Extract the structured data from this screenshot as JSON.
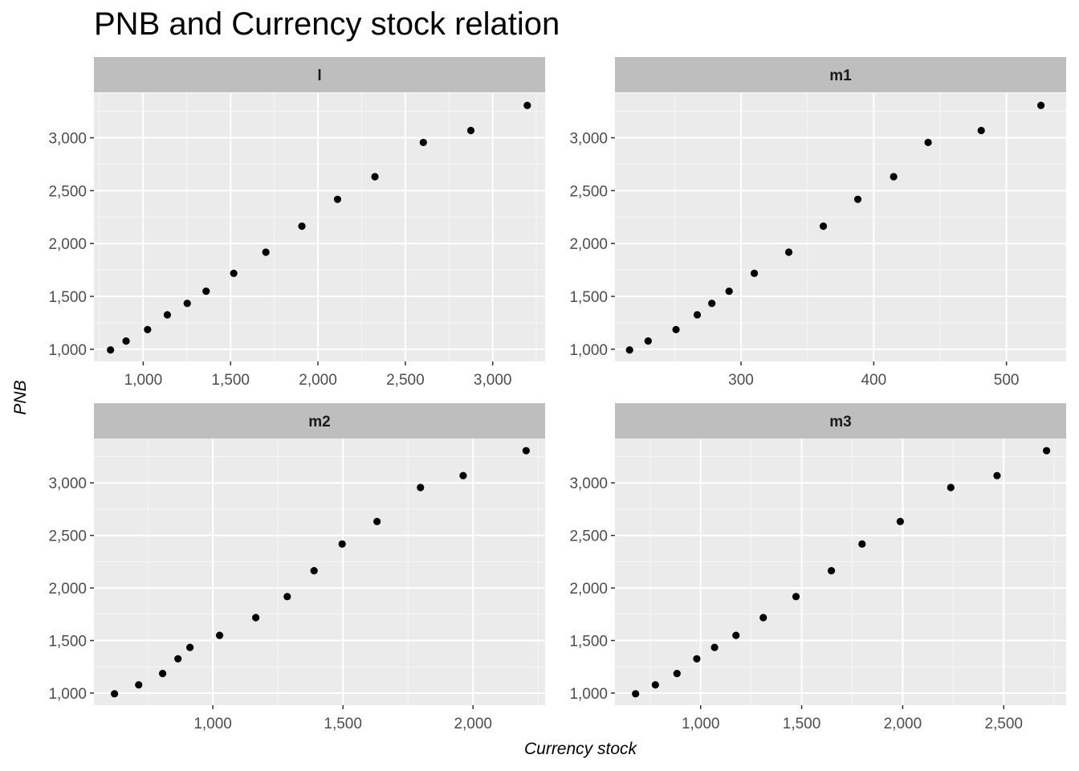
{
  "chart_data": {
    "type": "scatter",
    "title": "PNB and Currency stock relation",
    "xlabel": "Currency stock",
    "ylabel": "PNB",
    "grid": true,
    "legend": "none",
    "colors": {
      "panel_bg": "#EBEBEB",
      "strip_bg": "#BEBEBE",
      "grid_major": "#FFFFFF",
      "point": "#000000",
      "tick_text": "#4D4D4D"
    },
    "y_ticks": [
      1000,
      1500,
      2000,
      2500,
      3000
    ],
    "y_tick_labels": [
      "1,000",
      "1,500",
      "2,000",
      "2,500",
      "3,000"
    ],
    "facets": [
      {
        "name": "l",
        "xlim": [
          718,
          3300
        ],
        "ylim": [
          885,
          3422
        ],
        "x_ticks": [
          1000,
          1500,
          2000,
          2500,
          3000
        ],
        "x_tick_labels": [
          "1,000",
          "1,500",
          "2,000",
          "2,500",
          "3,000"
        ],
        "x": [
          813,
          902,
          1025,
          1138,
          1252,
          1360,
          1518,
          1702,
          1908,
          2112,
          2326,
          2603,
          2875,
          3198
        ],
        "y": [
          993,
          1078,
          1186,
          1326,
          1434,
          1549,
          1718,
          1918,
          2164,
          2418,
          2632,
          2956,
          3069,
          3306
        ]
      },
      {
        "name": "m1",
        "xlim": [
          205,
          545
        ],
        "ylim": [
          885,
          3422
        ],
        "x_ticks": [
          300,
          400,
          500
        ],
        "x_tick_labels": [
          "300",
          "400",
          "500"
        ],
        "x": [
          216,
          230,
          251,
          267,
          278,
          291,
          310,
          336,
          362,
          388,
          415,
          441,
          481,
          526
        ],
        "y": [
          993,
          1078,
          1186,
          1326,
          1434,
          1549,
          1718,
          1918,
          2164,
          2418,
          2632,
          2956,
          3069,
          3306
        ]
      },
      {
        "name": "m2",
        "xlim": [
          543,
          2277
        ],
        "ylim": [
          885,
          3422
        ],
        "x_ticks": [
          1000,
          1500,
          2000
        ],
        "x_tick_labels": [
          "1,000",
          "1,500",
          "2,000"
        ],
        "x": [
          622,
          715,
          807,
          866,
          912,
          1026,
          1165,
          1286,
          1389,
          1497,
          1631,
          1798,
          1962,
          2204
        ],
        "y": [
          993,
          1078,
          1186,
          1326,
          1434,
          1549,
          1718,
          1918,
          2164,
          2418,
          2632,
          2956,
          3069,
          3306
        ]
      },
      {
        "name": "m3",
        "xlim": [
          576,
          2809
        ],
        "ylim": [
          885,
          3422
        ],
        "x_ticks": [
          1000,
          1500,
          2000,
          2500
        ],
        "x_tick_labels": [
          "1,000",
          "1,500",
          "2,000",
          "2,500"
        ],
        "x": [
          678,
          776,
          883,
          981,
          1069,
          1175,
          1310,
          1472,
          1647,
          1799,
          1988,
          2238,
          2467,
          2712
        ],
        "y": [
          993,
          1078,
          1186,
          1326,
          1434,
          1549,
          1718,
          1918,
          2164,
          2418,
          2632,
          2956,
          3069,
          3306
        ]
      }
    ]
  }
}
